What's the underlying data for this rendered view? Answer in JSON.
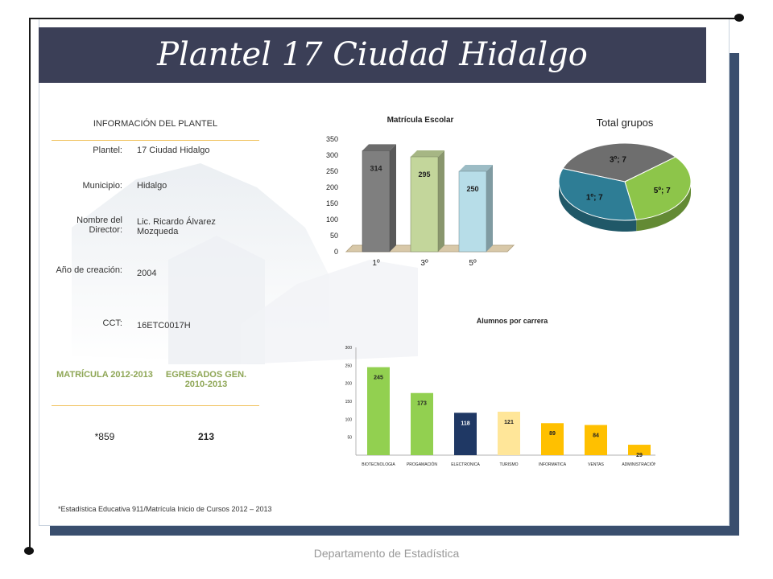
{
  "title": "Plantel 17 Ciudad Hidalgo",
  "info": {
    "heading": "INFORMACIÓN DEL PLANTEL",
    "rows": [
      {
        "label": "Plantel:",
        "value": "17 Ciudad Hidalgo"
      },
      {
        "label": "Municipio:",
        "value": "Hidalgo"
      },
      {
        "label": "Nombre del Director:",
        "value": "Lic. Ricardo Álvarez Mozqueda"
      },
      {
        "label": "Año de creación:",
        "value": "2004"
      },
      {
        "label": "CCT:",
        "value": "16ETC0017H"
      }
    ],
    "matricula_label": "MATRÍCULA 2012-2013",
    "egresados_label": "EGRESADOS GEN. 2010-2013",
    "matricula_value": "*859",
    "egresados_value": "213"
  },
  "footnote": "*Estadística Educativa 911/Matrícula Inicio de Cursos 2012 – 2013",
  "footer": "Departamento de Estadística",
  "chart_data": [
    {
      "type": "bar",
      "title": "Matrícula Escolar",
      "categories": [
        "1º",
        "3º",
        "5º"
      ],
      "values": [
        314,
        295,
        250
      ],
      "data_labels": [
        "314",
        "295",
        "250"
      ],
      "colors": [
        "#7f7f7f",
        "#c3d69b",
        "#b7dde8"
      ],
      "ylim": [
        0,
        350
      ],
      "yticks": [
        "0",
        "50",
        "100",
        "150",
        "200",
        "250",
        "300",
        "350"
      ]
    },
    {
      "type": "pie",
      "title": "Total grupos",
      "slices": [
        {
          "label": "3º; 7",
          "value": 7,
          "color": "#6e6e6e"
        },
        {
          "label": "5º; 7",
          "value": 7,
          "color": "#8dc54a"
        },
        {
          "label": "1º; 7",
          "value": 7,
          "color": "#2e7d95"
        }
      ]
    },
    {
      "type": "bar",
      "title": "Alumnos por carrera",
      "categories": [
        "BIOTECNOLOGIA",
        "PROGAMACIÓN",
        "ELECTRONICA",
        "TURISMO",
        "INFORMATICA",
        "VENTAS",
        "ADMINISTRACIÓN"
      ],
      "values": [
        245,
        173,
        118,
        121,
        89,
        84,
        29
      ],
      "data_labels": [
        "245",
        "173",
        "118",
        "121",
        "89",
        "84",
        "29"
      ],
      "colors": [
        "#92d050",
        "#92d050",
        "#1f3864",
        "#ffe699",
        "#ffc000",
        "#ffc000",
        "#ffc000"
      ],
      "ylim": [
        0,
        300
      ],
      "yticks": [
        "50",
        "100",
        "150",
        "200",
        "250",
        "300"
      ]
    }
  ]
}
